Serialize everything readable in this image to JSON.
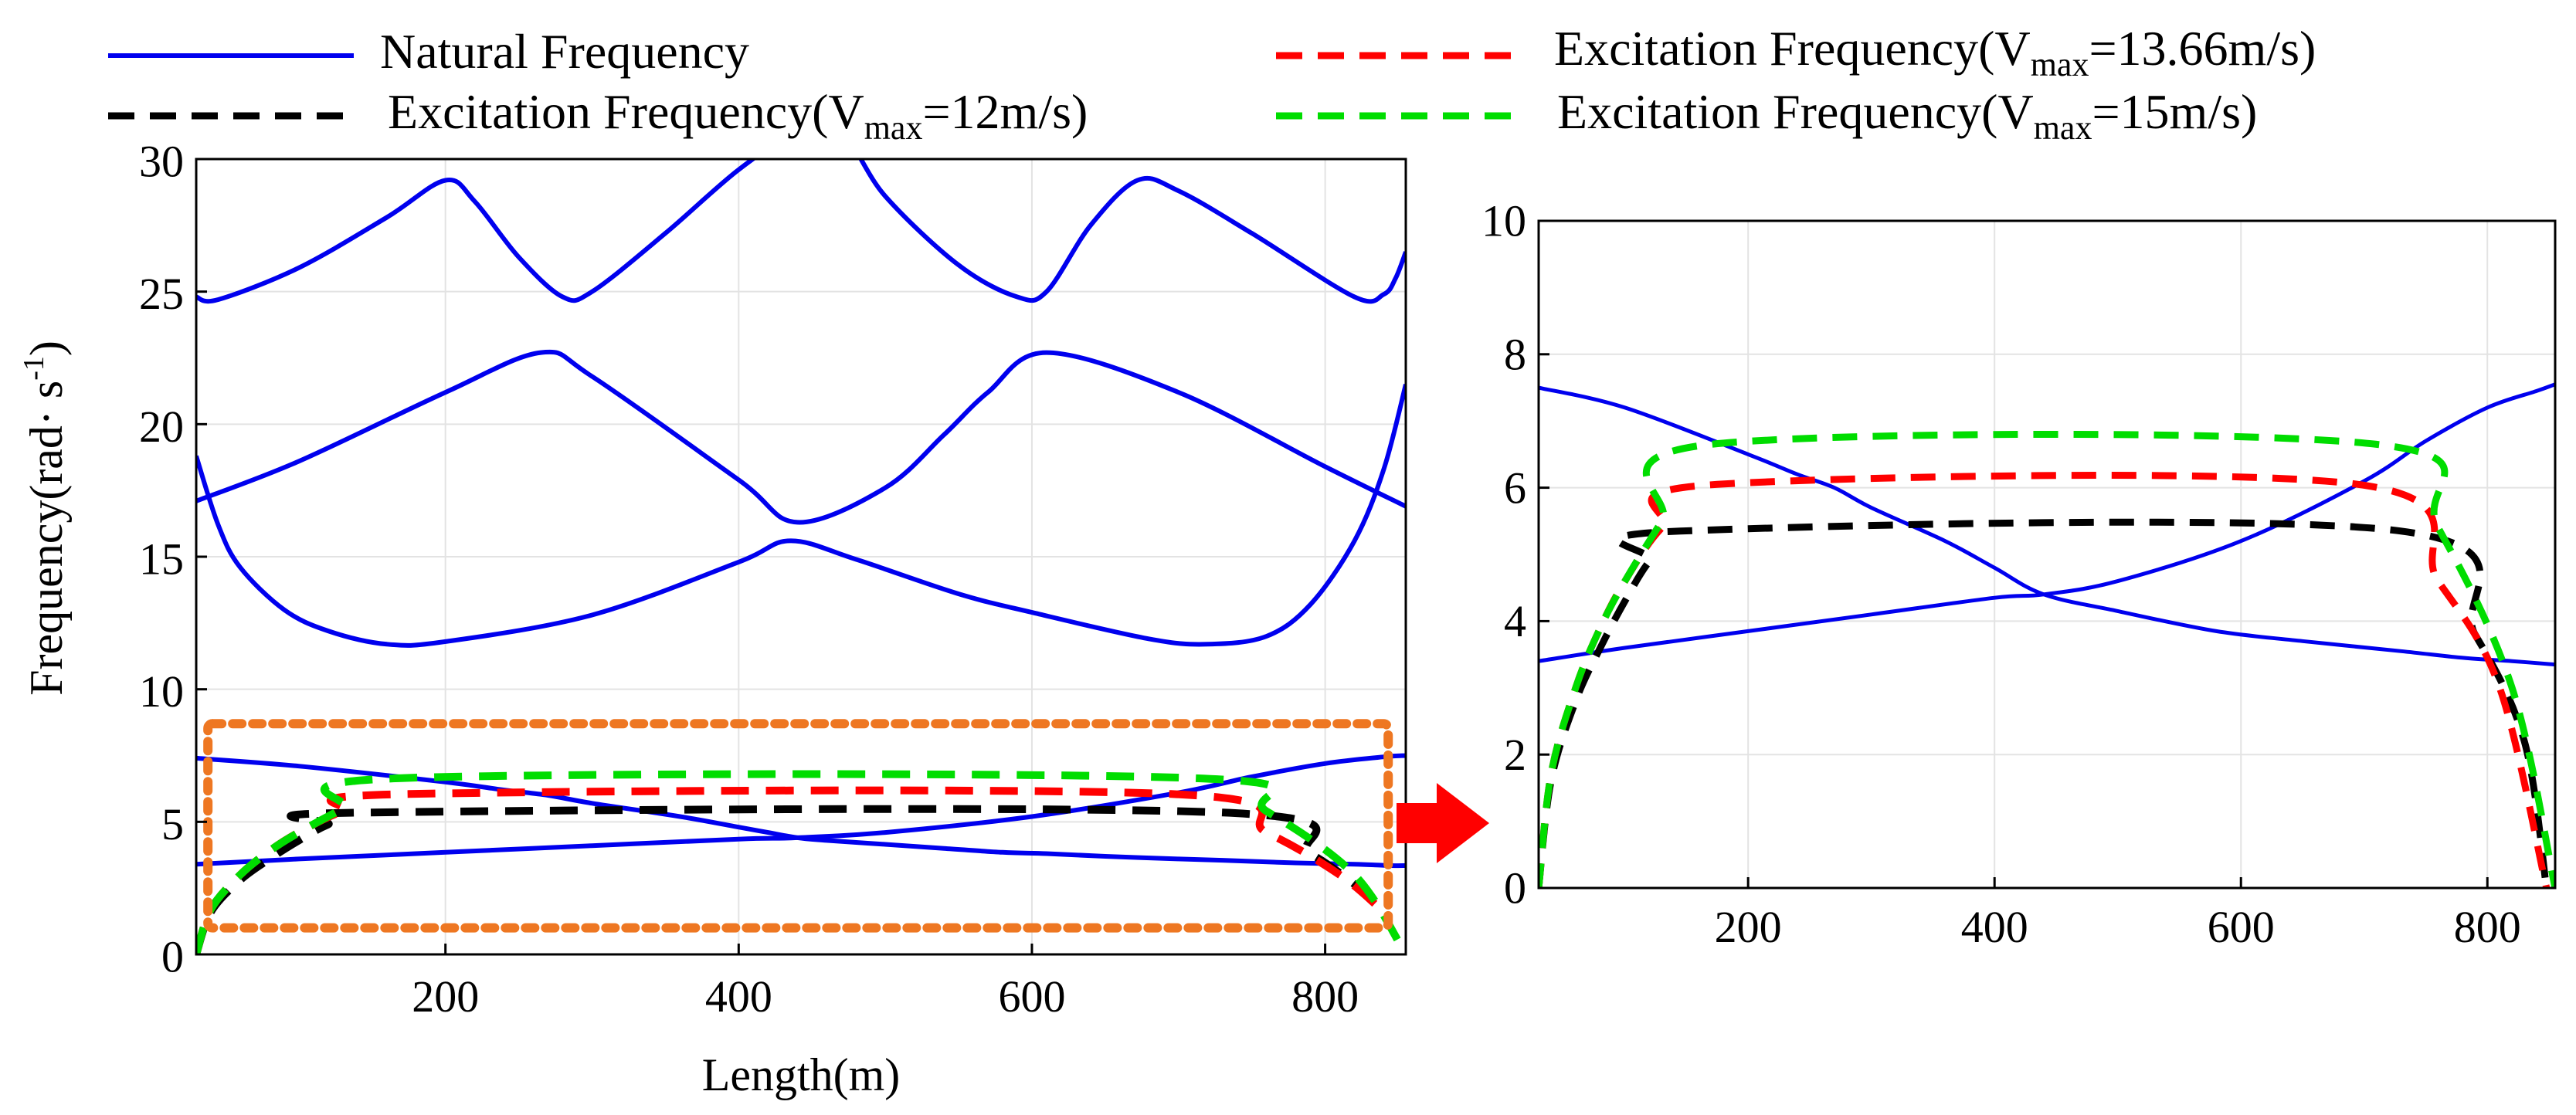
{
  "legend": {
    "natural": "Natural Frequency",
    "exc12": {
      "prefix": "Excitation Frequency(V",
      "sub": "max",
      "suffix": "=12m/s)"
    },
    "exc1366": {
      "prefix": "Excitation Frequency(V",
      "sub": "max",
      "suffix": "=13.66m/s)"
    },
    "exc15": {
      "prefix": "Excitation Frequency(V",
      "sub": "max",
      "suffix": "=15m/s)"
    }
  },
  "colors": {
    "natural": "#0000ee",
    "exc12": "#000000",
    "exc1366": "#ff0000",
    "exc15": "#00dd00",
    "highlight_box": "#ee7722",
    "arrow": "#ff0000"
  },
  "chart_data": [
    {
      "type": "line",
      "panel": "main",
      "xlabel": "Length(m)",
      "ylabel": {
        "text": "Frequency(rad· s",
        "sup": "-1",
        "close": ")"
      },
      "xlim": [
        30,
        855
      ],
      "ylim": [
        0,
        30
      ],
      "xticks": [
        200,
        400,
        600,
        800
      ],
      "yticks": [
        0,
        5,
        10,
        15,
        20,
        25,
        30
      ],
      "grid": true,
      "natural_frequency": [
        {
          "x": [
            30,
            100,
            200,
            240,
            270,
            300,
            360,
            400,
            420,
            440,
            460,
            500,
            540,
            580,
            610,
            650,
            700,
            730,
            780,
            820,
            845,
            855
          ],
          "y": [
            7.4,
            7.1,
            6.5,
            6.2,
            6.0,
            5.7,
            5.2,
            4.8,
            4.6,
            4.4,
            4.3,
            4.15,
            4.0,
            3.85,
            3.8,
            3.7,
            3.6,
            3.55,
            3.45,
            3.4,
            3.35,
            3.35
          ]
        },
        {
          "x": [
            30,
            100,
            200,
            300,
            400,
            440,
            500,
            600,
            700,
            750,
            800,
            840,
            855
          ],
          "y": [
            3.4,
            3.6,
            3.85,
            4.1,
            4.35,
            4.4,
            4.6,
            5.2,
            6.1,
            6.7,
            7.2,
            7.45,
            7.5
          ]
        },
        {
          "x": [
            30,
            45,
            60,
            90,
            120,
            160,
            200,
            300,
            400,
            435,
            480,
            550,
            600,
            680,
            720,
            760,
            790,
            820,
            840,
            855
          ],
          "y": [
            18.8,
            16.2,
            14.6,
            13.0,
            12.2,
            11.7,
            11.8,
            12.8,
            14.8,
            15.6,
            14.9,
            13.6,
            12.9,
            11.9,
            11.7,
            12.0,
            13.2,
            15.6,
            18.3,
            21.5
          ]
        },
        {
          "x": [
            30,
            100,
            200,
            265,
            300,
            400,
            440,
            500,
            540,
            570,
            610,
            700,
            800,
            855
          ],
          "y": [
            17.1,
            18.6,
            21.2,
            22.7,
            21.8,
            17.9,
            16.3,
            17.6,
            19.6,
            21.2,
            22.7,
            21.2,
            18.4,
            16.9
          ]
        },
        {
          "x": [
            30,
            45,
            100,
            160,
            200,
            220,
            250,
            280,
            300,
            350,
            400,
            440,
            470,
            500,
            550,
            590,
            610,
            640,
            672,
            700,
            750,
            820,
            840,
            848,
            855
          ],
          "y": [
            24.8,
            24.7,
            25.9,
            27.8,
            29.2,
            28.4,
            26.3,
            24.8,
            25.0,
            27.2,
            29.6,
            31.0,
            31.0,
            28.6,
            26.0,
            24.8,
            25.0,
            27.5,
            29.2,
            28.8,
            27.2,
            24.8,
            24.9,
            25.5,
            26.5
          ]
        }
      ],
      "excitation_12": {
        "x": [
          30,
          40,
          60,
          80,
          100,
          120,
          145,
          730,
          790,
          830,
          840
        ],
        "y": [
          0.0,
          1.6,
          2.8,
          3.6,
          4.3,
          4.9,
          5.35,
          5.35,
          3.8,
          2.2,
          1.6
        ]
      },
      "excitation_13_66": {
        "x": [
          30,
          40,
          60,
          80,
          100,
          130,
          175,
          695,
          760,
          810,
          840
        ],
        "y": [
          0.0,
          1.7,
          3.0,
          3.9,
          4.6,
          5.4,
          6.05,
          6.05,
          4.6,
          3.0,
          1.6
        ]
      },
      "excitation_15": {
        "x": [
          30,
          40,
          60,
          80,
          100,
          130,
          170,
          710,
          760,
          820,
          855
        ],
        "y": [
          0.0,
          1.7,
          3.0,
          3.9,
          4.6,
          5.5,
          6.65,
          6.65,
          5.4,
          3.0,
          0.0
        ]
      },
      "highlight_region": {
        "x": [
          38,
          843
        ],
        "y": [
          1.0,
          8.7
        ]
      }
    },
    {
      "type": "line",
      "panel": "zoom",
      "xlim": [
        30,
        855
      ],
      "ylim": [
        0,
        10
      ],
      "xticks": [
        200,
        400,
        600,
        800
      ],
      "yticks": [
        0,
        2,
        4,
        6,
        8,
        10
      ],
      "grid": true,
      "natural_frequency": [
        {
          "x": [
            30,
            100,
            200,
            240,
            270,
            300,
            360,
            400,
            440,
            500,
            580,
            650,
            730,
            780,
            820,
            855
          ],
          "y": [
            7.5,
            7.2,
            6.5,
            6.2,
            6.0,
            5.7,
            5.2,
            4.8,
            4.4,
            4.15,
            3.85,
            3.7,
            3.55,
            3.45,
            3.4,
            3.35
          ]
        },
        {
          "x": [
            30,
            100,
            200,
            300,
            400,
            440,
            500,
            600,
            700,
            750,
            800,
            840,
            855
          ],
          "y": [
            3.4,
            3.6,
            3.85,
            4.1,
            4.35,
            4.4,
            4.6,
            5.2,
            6.1,
            6.7,
            7.2,
            7.45,
            7.55
          ]
        }
      ],
      "excitation_12": {
        "x": [
          30,
          40,
          60,
          80,
          100,
          120,
          145,
          730,
          790,
          830,
          848
        ],
        "y": [
          0.0,
          1.6,
          2.8,
          3.6,
          4.3,
          4.9,
          5.35,
          5.35,
          3.8,
          2.2,
          0.0
        ]
      },
      "excitation_13_66": {
        "x": [
          30,
          40,
          60,
          80,
          100,
          130,
          175,
          695,
          760,
          810,
          848
        ],
        "y": [
          0.0,
          1.7,
          3.0,
          3.9,
          4.6,
          5.4,
          6.05,
          6.05,
          4.6,
          3.0,
          0.0
        ]
      },
      "excitation_15": {
        "x": [
          30,
          40,
          60,
          80,
          100,
          130,
          170,
          710,
          760,
          820,
          855
        ],
        "y": [
          0.0,
          1.7,
          3.0,
          3.9,
          4.6,
          5.5,
          6.65,
          6.65,
          5.4,
          3.0,
          0.0
        ]
      }
    }
  ]
}
